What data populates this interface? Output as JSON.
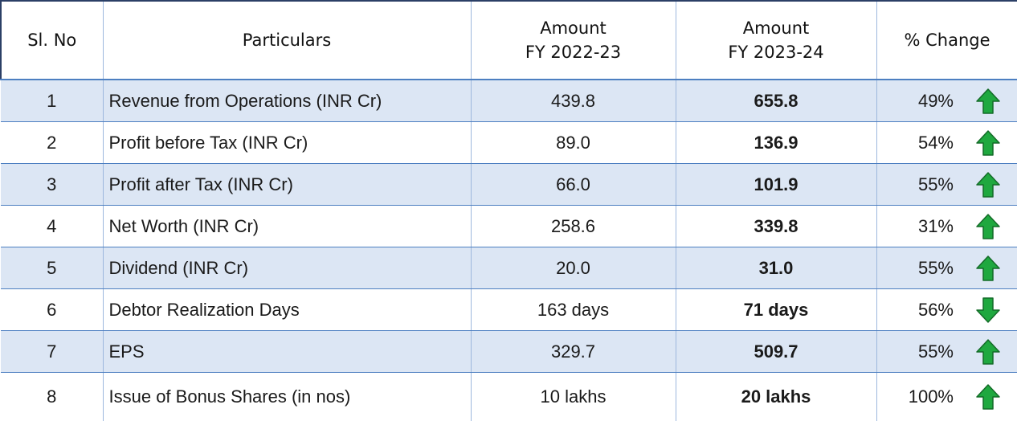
{
  "table": {
    "header": [
      [
        "Sl. No"
      ],
      [
        "Particulars"
      ],
      [
        "Amount",
        "FY 2022-23"
      ],
      [
        "Amount",
        "FY 2023-24"
      ],
      [
        "% Change"
      ]
    ],
    "rows": [
      [
        "1",
        "Revenue from Operations (INR Cr)",
        "439.8",
        "655.8",
        "49%"
      ],
      [
        "2",
        "Profit before Tax (INR Cr)",
        "89.0",
        "136.9",
        "54%"
      ],
      [
        "3",
        "Profit after Tax (INR Cr)",
        "66.0",
        "101.9",
        "55%"
      ],
      [
        "4",
        "Net Worth (INR Cr)",
        "258.6",
        "339.8",
        "31%"
      ],
      [
        "5",
        "Dividend (INR Cr)",
        "20.0",
        "31.0",
        "55%"
      ],
      [
        "6",
        "Debtor Realization Days",
        "163 days",
        "71 days",
        "56%"
      ],
      [
        "7",
        "EPS",
        "329.7",
        "509.7",
        "55%"
      ],
      [
        "8",
        "Issue of Bonus Shares (in nos)",
        "10 lakhs",
        "20 lakhs",
        "100%"
      ]
    ],
    "trends": [
      "up",
      "up",
      "up",
      "up",
      "up",
      "down",
      "up",
      "up"
    ]
  }
}
